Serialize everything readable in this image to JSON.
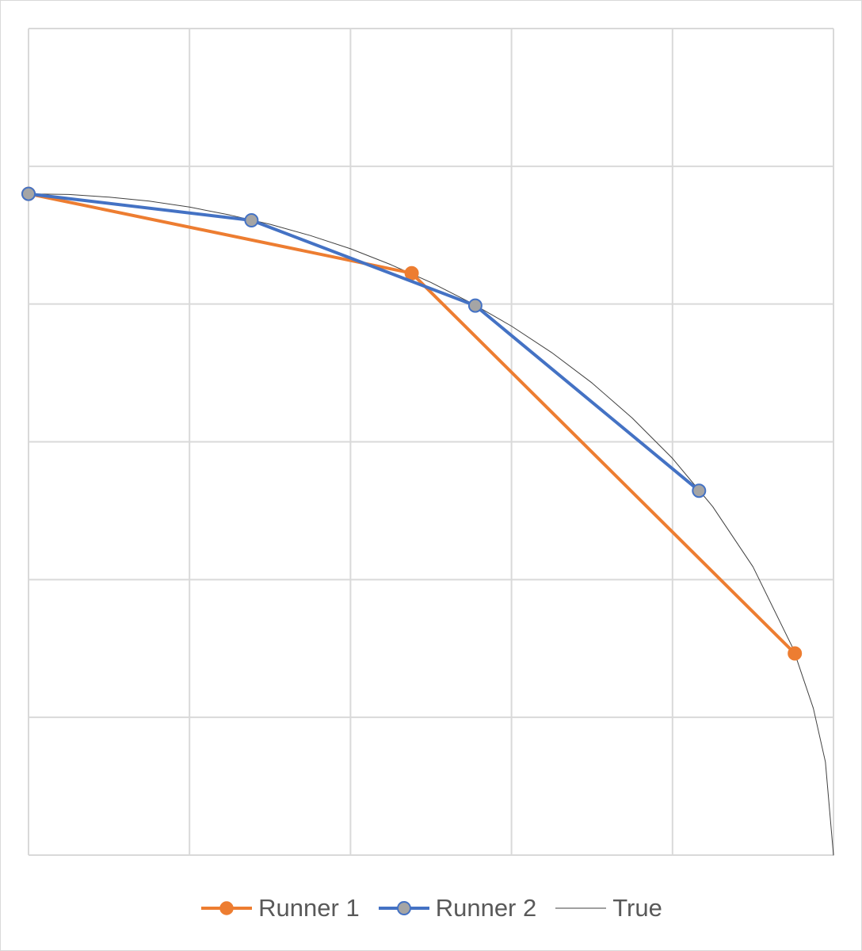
{
  "chart_data": {
    "type": "line",
    "title": "",
    "xlabel": "",
    "ylabel": "",
    "xlim": [
      0,
      1
    ],
    "ylim": [
      0,
      1.25
    ],
    "grid": true,
    "legend_position": "bottom",
    "series": [
      {
        "name": "Runner 1",
        "color": "#ED7D31",
        "marker": "circle",
        "x": [
          0,
          0.476,
          0.952
        ],
        "y": [
          1.0,
          0.88,
          0.305
        ]
      },
      {
        "name": "Runner 2",
        "color": "#4472C4",
        "marker_fill": "#A5A5A5",
        "marker": "circle",
        "x": [
          0,
          0.277,
          0.555,
          0.833
        ],
        "y": [
          1.0,
          0.96,
          0.831,
          0.551
        ]
      },
      {
        "name": "True",
        "color": "#404040",
        "marker": "none",
        "x": [
          0,
          0.05,
          0.1,
          0.15,
          0.2,
          0.25,
          0.3,
          0.35,
          0.4,
          0.45,
          0.5,
          0.55,
          0.6,
          0.65,
          0.7,
          0.75,
          0.8,
          0.85,
          0.9,
          0.95,
          0.975,
          0.99,
          1.0
        ],
        "y": [
          1.0,
          0.999,
          0.995,
          0.989,
          0.98,
          0.968,
          0.954,
          0.937,
          0.917,
          0.893,
          0.866,
          0.835,
          0.8,
          0.76,
          0.714,
          0.661,
          0.6,
          0.527,
          0.436,
          0.312,
          0.222,
          0.141,
          0.0
        ]
      }
    ]
  }
}
